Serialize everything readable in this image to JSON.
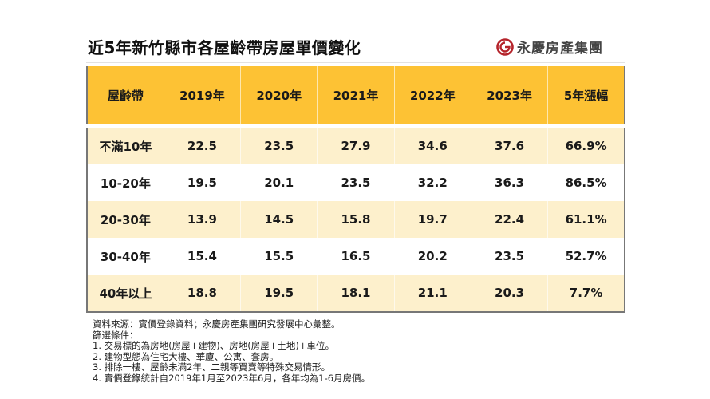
{
  "header": {
    "title": "近5年新竹縣市各屋齡帶房屋單價變化",
    "logo_text": "永慶房產集團",
    "logo_icon": "spiral-circle-logo",
    "brand_color": "#b5242b"
  },
  "colors": {
    "header_bg": "#fdc234",
    "band_bg": "#fdf0cc",
    "plain_bg": "#ffffff"
  },
  "chart_data": {
    "type": "table",
    "title": "近5年新竹縣市各屋齡帶房屋單價變化",
    "columns": [
      "屋齡帶",
      "2019年",
      "2020年",
      "2021年",
      "2022年",
      "2023年",
      "5年漲幅"
    ],
    "rows": [
      {
        "label": "不滿10年",
        "values": [
          "22.5",
          "23.5",
          "27.9",
          "34.6",
          "37.6"
        ],
        "change": "66.9%"
      },
      {
        "label": "10-20年",
        "values": [
          "19.5",
          "20.1",
          "23.5",
          "32.2",
          "36.3"
        ],
        "change": "86.5%"
      },
      {
        "label": "20-30年",
        "values": [
          "13.9",
          "14.5",
          "15.8",
          "19.7",
          "22.4"
        ],
        "change": "61.1%"
      },
      {
        "label": "30-40年",
        "values": [
          "15.4",
          "15.5",
          "16.5",
          "20.2",
          "23.5"
        ],
        "change": "52.7%"
      },
      {
        "label": "40年以上",
        "values": [
          "18.8",
          "19.5",
          "18.1",
          "21.1",
          "20.3"
        ],
        "change": "7.7%"
      }
    ]
  },
  "notes": [
    "資料來源：實價登錄資料；永慶房產集團研究發展中心彙整。",
    "篩選條件：",
    "1. 交易標的為房地(房屋+建物)、房地(房屋+土地)+車位。",
    "2. 建物型態為住宅大樓、華廈、公寓、套房。",
    "3. 排除一樓、屋齡未滿2年、二親等買賣等特殊交易情形。",
    "4. 實價登錄統計自2019年1月至2023年6月，各年均為1-6月房價。"
  ]
}
